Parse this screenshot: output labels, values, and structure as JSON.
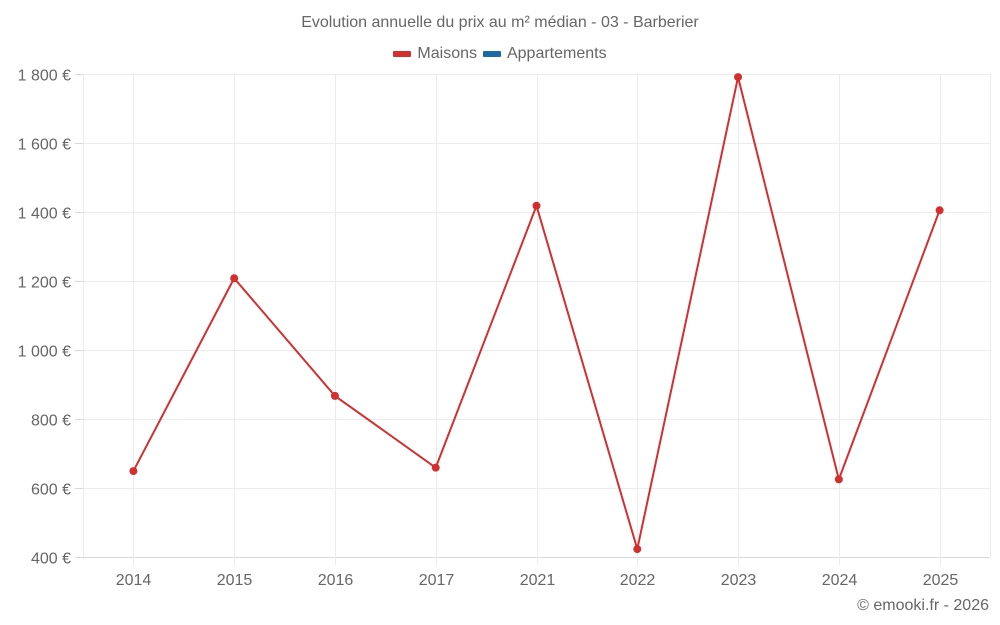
{
  "chart_data": {
    "type": "line",
    "title": "Evolution annuelle du prix au m² médian - 03 - Barberier",
    "categories": [
      "2014",
      "2015",
      "2016",
      "2017",
      "2021",
      "2022",
      "2023",
      "2024",
      "2025"
    ],
    "series": [
      {
        "name": "Maisons",
        "color": "#d32f2f",
        "values": [
          649,
          1208,
          867,
          659,
          1418,
          423,
          1791,
          625,
          1405
        ]
      },
      {
        "name": "Appartements",
        "color": "#1a6aa6",
        "values": []
      }
    ],
    "xlabel": "",
    "ylabel": "",
    "ylim": [
      400,
      1800
    ],
    "yticks": [
      400,
      600,
      800,
      1000,
      1200,
      1400,
      1600,
      1800
    ],
    "ytick_labels": [
      "400 €",
      "600 €",
      "800 €",
      "1 000 €",
      "1 200 €",
      "1 400 €",
      "1 600 €",
      "1 800 €"
    ],
    "grid": true,
    "legend_position": "top"
  },
  "header": {
    "title": "Evolution annuelle du prix au m² médian - 03 - Barberier"
  },
  "legend": {
    "items": [
      {
        "label": "Maisons",
        "color": "#d32f2f"
      },
      {
        "label": "Appartements",
        "color": "#1a6aa6"
      }
    ]
  },
  "footer": {
    "credit": "© emooki.fr - 2026"
  }
}
